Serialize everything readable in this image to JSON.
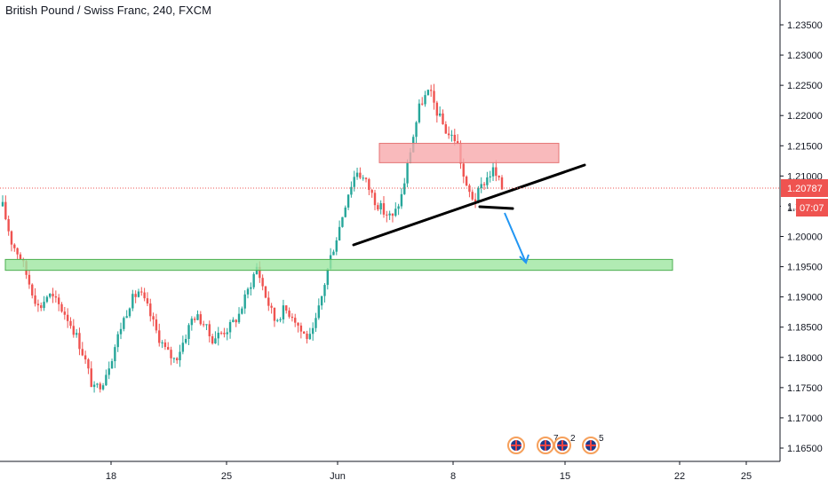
{
  "chart_title": "British Pound / Swiss Franc, 240, FXCM",
  "chart_data": {
    "type": "candlestick",
    "title": "British Pound / Swiss Franc, 240, FXCM",
    "x_ticks": [
      "18",
      "25",
      "Jun",
      "8",
      "15",
      "22",
      "25"
    ],
    "y_ticks": [
      "1.23500",
      "1.23000",
      "1.22500",
      "1.22000",
      "1.21500",
      "1.21000",
      "1.20500",
      "1.20000",
      "1.19500",
      "1.19000",
      "1.18500",
      "1.18000",
      "1.17500",
      "1.17000",
      "1.16500"
    ],
    "ylim": [
      1.1625,
      1.2375
    ],
    "last_price": "1.20787",
    "countdown": "07:07",
    "resistance_zone": [
      1.2122,
      1.2154
    ],
    "support_zone": [
      1.1944,
      1.1962
    ],
    "path": [
      1.205,
      1.199,
      1.1965,
      1.192,
      1.188,
      1.1905,
      1.189,
      1.187,
      1.184,
      1.18,
      1.1745,
      1.176,
      1.18,
      1.185,
      1.189,
      1.191,
      1.188,
      1.184,
      1.181,
      1.1795,
      1.183,
      1.187,
      1.186,
      1.183,
      1.184,
      1.185,
      1.187,
      1.191,
      1.195,
      1.19,
      1.186,
      1.188,
      1.187,
      1.184,
      1.183,
      1.189,
      1.196,
      1.201,
      1.207,
      1.211,
      1.209,
      1.206,
      1.204,
      1.203,
      1.207,
      1.215,
      1.222,
      1.224,
      1.22,
      1.217,
      1.216,
      1.208,
      1.206,
      1.209,
      1.211,
      1.208
    ],
    "annotations": {
      "trendline": [
        [
          398,
          276
        ],
        [
          658,
          186
        ]
      ],
      "flat_line": [
        [
          540,
          233
        ],
        [
          577,
          235
        ]
      ],
      "arrow": [
        [
          568,
          240
        ],
        [
          592,
          296
        ]
      ]
    },
    "events": [
      {
        "label": "",
        "flag": "uk"
      },
      {
        "label": "7",
        "flag": "uk"
      },
      {
        "label": "2",
        "flag": "uk"
      },
      {
        "label": "5",
        "flag": "uk"
      }
    ],
    "colors": {
      "up": "#26a69a",
      "down": "#ef5350",
      "resistance_fill": "#f7a9ab",
      "support_fill": "#9ee6a0",
      "price_tag": "#ef5350",
      "trendline": "#000000",
      "arrow": "#2196f3"
    }
  }
}
